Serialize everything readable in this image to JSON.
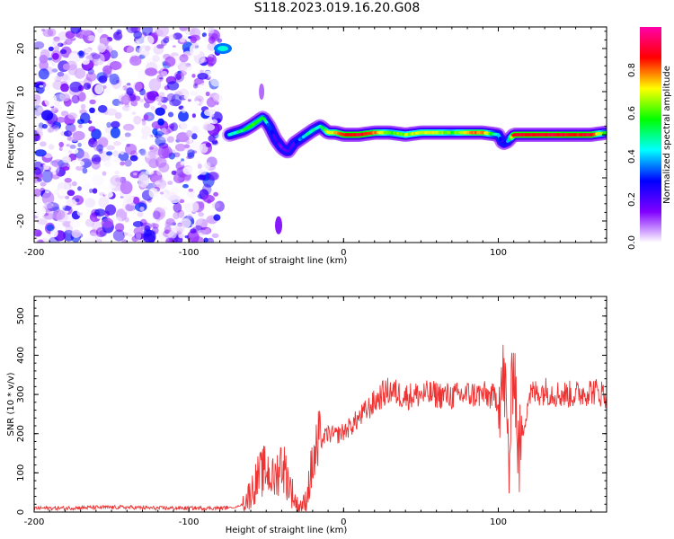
{
  "title": "S118.2023.019.16.20.G08",
  "chart_data": [
    {
      "type": "heatmap",
      "xlabel": "Height of straight line (km)",
      "ylabel": "Frequency (Hz)",
      "xlim": [
        -200,
        170
      ],
      "ylim": [
        -25,
        25
      ],
      "x_ticks": [
        -200,
        -100,
        0,
        100
      ],
      "x_tick_labels": [
        "-200",
        "-100",
        "0",
        "100"
      ],
      "y_ticks": [
        -20,
        -10,
        0,
        10,
        20
      ],
      "y_tick_labels": [
        "-20",
        "-10",
        "0",
        "10",
        "20"
      ],
      "noise_region_x": [
        -200,
        -80
      ],
      "ridge": {
        "x": [
          -74,
          -65,
          -60,
          -52,
          -48,
          -44,
          -40,
          -36,
          -32,
          -28,
          -24,
          -20,
          -15,
          -10,
          -5,
          0,
          10,
          20,
          30,
          40,
          50,
          60,
          70,
          80,
          90,
          100,
          103,
          106,
          110,
          120,
          130,
          140,
          150,
          160,
          170
        ],
        "freq": [
          0,
          1,
          2,
          4,
          2,
          -1,
          -3,
          -4,
          -2,
          -1,
          0,
          1,
          2,
          0.5,
          0.5,
          0,
          0,
          0.5,
          0.5,
          0,
          0.5,
          0.5,
          0.5,
          0.5,
          0.5,
          0,
          -2,
          -1.5,
          0,
          0,
          0,
          0,
          0,
          0,
          0.5
        ],
        "amplitude": [
          0.45,
          0.5,
          0.6,
          0.55,
          0.3,
          0.2,
          0.15,
          0.2,
          0.2,
          0.35,
          0.45,
          0.5,
          0.45,
          0.7,
          0.75,
          0.85,
          0.9,
          0.8,
          0.6,
          0.65,
          0.7,
          0.7,
          0.6,
          0.75,
          0.8,
          0.4,
          0.2,
          0.35,
          0.9,
          0.9,
          0.9,
          0.9,
          0.85,
          0.9,
          0.5
        ]
      },
      "colorbar": {
        "label": "Normalized spectral amplitude",
        "range": [
          0,
          1
        ],
        "ticks": [
          0.0,
          0.2,
          0.4,
          0.6,
          0.8
        ],
        "tick_labels": [
          "0.0",
          "0.2",
          "0.4",
          "0.6",
          "0.8"
        ],
        "colors": [
          "#ffffff",
          "#8000ff",
          "#0000ff",
          "#00ffff",
          "#00ff00",
          "#ffff00",
          "#ff0000",
          "#ff00aa"
        ]
      }
    },
    {
      "type": "line",
      "xlabel": "Height of straight line (km)",
      "ylabel": "SNR (10 * v/v)",
      "xlim": [
        -200,
        170
      ],
      "ylim": [
        0,
        550
      ],
      "x_ticks": [
        -200,
        -100,
        0,
        100
      ],
      "x_tick_labels": [
        "-200",
        "-100",
        "0",
        "100"
      ],
      "y_ticks": [
        0,
        100,
        200,
        300,
        400,
        500
      ],
      "y_tick_labels": [
        "0",
        "100",
        "200",
        "300",
        "400",
        "500"
      ],
      "series": [
        {
          "name": "SNR",
          "color": "#ee3333",
          "x": [
            -200,
            -180,
            -160,
            -140,
            -120,
            -100,
            -80,
            -70,
            -65,
            -60,
            -55,
            -50,
            -45,
            -40,
            -35,
            -30,
            -25,
            -20,
            -15,
            -10,
            -5,
            0,
            5,
            10,
            15,
            20,
            25,
            30,
            40,
            50,
            60,
            70,
            80,
            90,
            100,
            104,
            107,
            110,
            113,
            120,
            130,
            140,
            150,
            160,
            170
          ],
          "values": [
            10,
            10,
            12,
            12,
            10,
            10,
            10,
            12,
            20,
            50,
            90,
            110,
            80,
            130,
            70,
            15,
            20,
            120,
            180,
            200,
            195,
            205,
            220,
            240,
            260,
            280,
            300,
            310,
            295,
            300,
            300,
            295,
            300,
            300,
            290,
            340,
            120,
            420,
            140,
            300,
            310,
            300,
            300,
            310,
            300
          ]
        }
      ]
    }
  ]
}
